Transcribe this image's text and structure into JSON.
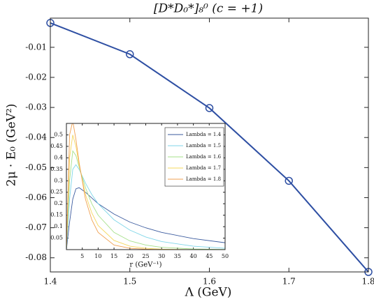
{
  "chart_data": [
    {
      "type": "line",
      "title": "[D*D₀*]₈⁰ (c = +1)",
      "x_label": "Λ (GeV)",
      "y_label": "2μ · E₀ (GeV²)",
      "x": [
        1.4,
        1.5,
        1.6,
        1.7,
        1.8
      ],
      "series": [
        {
          "color": "#2e4fa3",
          "values": [
            -0.0019,
            -0.0123,
            -0.0302,
            -0.0544,
            -0.0847
          ]
        }
      ],
      "xlim": [
        1.4,
        1.8
      ],
      "xticks": [
        1.4,
        1.5,
        1.6,
        1.7,
        1.8
      ],
      "ylim": [
        -0.0847,
        -0.0003
      ],
      "yticks": [
        -0.08,
        -0.07,
        -0.06,
        -0.05,
        -0.04,
        -0.03,
        -0.02,
        -0.01
      ]
    },
    {
      "type": "line",
      "x_label": "r (GeV⁻¹)",
      "x": [
        0,
        1,
        2,
        3,
        4,
        6,
        8,
        10,
        15,
        20,
        25,
        30,
        40,
        50
      ],
      "series": [
        {
          "name": "Lambda = 1.4",
          "color": "#3a5a9e",
          "values": [
            0,
            0.12,
            0.22,
            0.265,
            0.27,
            0.25,
            0.225,
            0.2,
            0.155,
            0.12,
            0.095,
            0.075,
            0.048,
            0.03
          ]
        },
        {
          "name": "Lambda = 1.5",
          "color": "#7fd6e8",
          "values": [
            0,
            0.22,
            0.35,
            0.37,
            0.35,
            0.29,
            0.24,
            0.2,
            0.13,
            0.085,
            0.055,
            0.035,
            0.015,
            0.006
          ]
        },
        {
          "name": "Lambda = 1.6",
          "color": "#a6e08a",
          "values": [
            0,
            0.3,
            0.43,
            0.41,
            0.36,
            0.27,
            0.2,
            0.15,
            0.075,
            0.038,
            0.02,
            0.01,
            0.003,
            0.001
          ]
        },
        {
          "name": "Lambda = 1.7",
          "color": "#f5d85e",
          "values": [
            0,
            0.4,
            0.5,
            0.45,
            0.37,
            0.24,
            0.16,
            0.105,
            0.04,
            0.015,
            0.006,
            0.002,
            0,
            0
          ]
        },
        {
          "name": "Lambda = 1.8",
          "color": "#f0a050",
          "values": [
            0,
            0.5,
            0.56,
            0.48,
            0.38,
            0.22,
            0.13,
            0.075,
            0.02,
            0.006,
            0.002,
            0,
            0,
            0
          ]
        }
      ],
      "xlim": [
        0,
        50
      ],
      "xticks": [
        5,
        10,
        15,
        20,
        25,
        30,
        35,
        40,
        45,
        50
      ],
      "ylim": [
        0,
        0.55
      ],
      "yticks": [
        0.05,
        0.1,
        0.15,
        0.2,
        0.25,
        0.3,
        0.35,
        0.4,
        0.45,
        0.5
      ],
      "legend": "upper right"
    }
  ]
}
